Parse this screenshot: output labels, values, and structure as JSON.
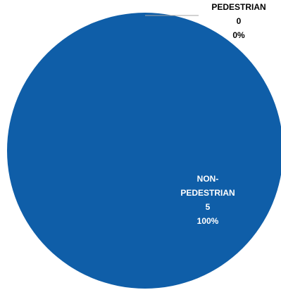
{
  "chart_data": {
    "type": "pie",
    "title": "",
    "slices": [
      {
        "label_line1": "PEDESTRIAN",
        "label_line2": "",
        "value": 0,
        "value_text": "0",
        "percent_text": "0%",
        "color": "#ffffff"
      },
      {
        "label_line1": "NON-",
        "label_line2": "PEDESTRIAN",
        "value": 5,
        "value_text": "5",
        "percent_text": "100%",
        "color": "#0f5ea8"
      }
    ],
    "leader_line_color": "#a6a6a6",
    "legend": "none"
  }
}
